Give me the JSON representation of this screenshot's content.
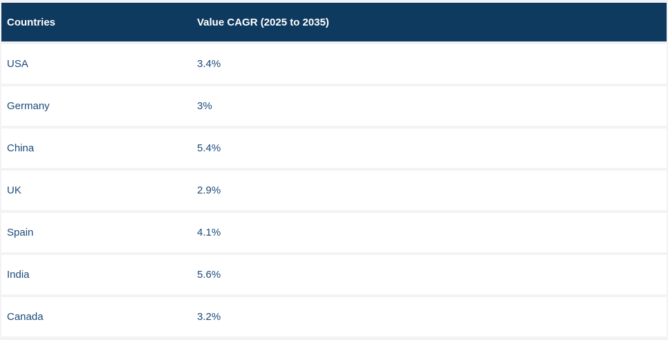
{
  "chart_data": {
    "type": "table",
    "columns": [
      "Countries",
      "Value CAGR (2025 to 2035)"
    ],
    "rows": [
      [
        "USA",
        "3.4%"
      ],
      [
        "Germany",
        "3%"
      ],
      [
        "China",
        "5.4%"
      ],
      [
        "UK",
        "2.9%"
      ],
      [
        "Spain",
        "4.1%"
      ],
      [
        "India",
        "5.6%"
      ],
      [
        "Canada",
        "3.2%"
      ]
    ]
  },
  "colors": {
    "header_bg": "#0e3a60",
    "header_text": "#ffffff",
    "row_bg": "#ffffff",
    "row_text": "#1a4a7a",
    "page_bg": "#f3f3f6"
  }
}
